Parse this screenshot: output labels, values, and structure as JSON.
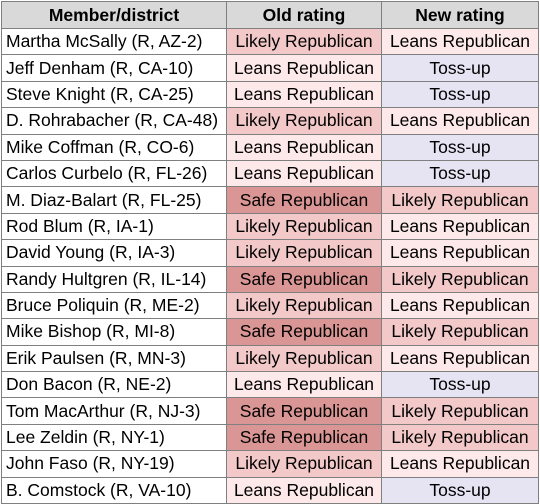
{
  "table": {
    "headers": [
      "Member/district",
      "Old rating",
      "New rating"
    ],
    "rows": [
      {
        "member": "Martha McSally (R, AZ-2)",
        "old": "Likely Republican",
        "new": "Leans Republican"
      },
      {
        "member": "Jeff Denham (R, CA-10)",
        "old": "Leans Republican",
        "new": "Toss-up"
      },
      {
        "member": "Steve Knight (R, CA-25)",
        "old": "Leans Republican",
        "new": "Toss-up"
      },
      {
        "member": "D. Rohrabacher (R, CA-48)",
        "old": "Likely Republican",
        "new": "Leans Republican"
      },
      {
        "member": "Mike Coffman (R, CO-6)",
        "old": "Leans Republican",
        "new": "Toss-up"
      },
      {
        "member": "Carlos Curbelo (R, FL-26)",
        "old": "Leans Republican",
        "new": "Toss-up"
      },
      {
        "member": "M. Diaz-Balart (R, FL-25)",
        "old": "Safe Republican",
        "new": "Likely Republican"
      },
      {
        "member": "Rod Blum (R, IA-1)",
        "old": "Likely Republican",
        "new": "Leans Republican"
      },
      {
        "member": "David Young (R, IA-3)",
        "old": "Likely Republican",
        "new": "Leans Republican"
      },
      {
        "member": "Randy Hultgren (R, IL-14)",
        "old": "Safe Republican",
        "new": "Likely Republican"
      },
      {
        "member": "Bruce Poliquin (R, ME-2)",
        "old": "Likely Republican",
        "new": "Leans Republican"
      },
      {
        "member": "Mike Bishop (R, MI-8)",
        "old": "Safe Republican",
        "new": "Likely Republican"
      },
      {
        "member": "Erik Paulsen (R, MN-3)",
        "old": "Likely Republican",
        "new": "Leans Republican"
      },
      {
        "member": "Don Bacon (R, NE-2)",
        "old": "Leans Republican",
        "new": "Toss-up"
      },
      {
        "member": "Tom MacArthur (R, NJ-3)",
        "old": "Safe Republican",
        "new": "Likely Republican"
      },
      {
        "member": "Lee Zeldin (R, NY-1)",
        "old": "Safe Republican",
        "new": "Likely Republican"
      },
      {
        "member": "John Faso (R, NY-19)",
        "old": "Likely Republican",
        "new": "Leans Republican"
      },
      {
        "member": "B. Comstock (R, VA-10)",
        "old": "Leans Republican",
        "new": "Toss-up"
      }
    ]
  },
  "colors": {
    "header": "#d9d9d9",
    "Safe Republican": "#da9694",
    "Likely Republican": "#f2c9c8",
    "Leans Republican": "#fde9e9",
    "Toss-up": "#e6e4f2"
  }
}
